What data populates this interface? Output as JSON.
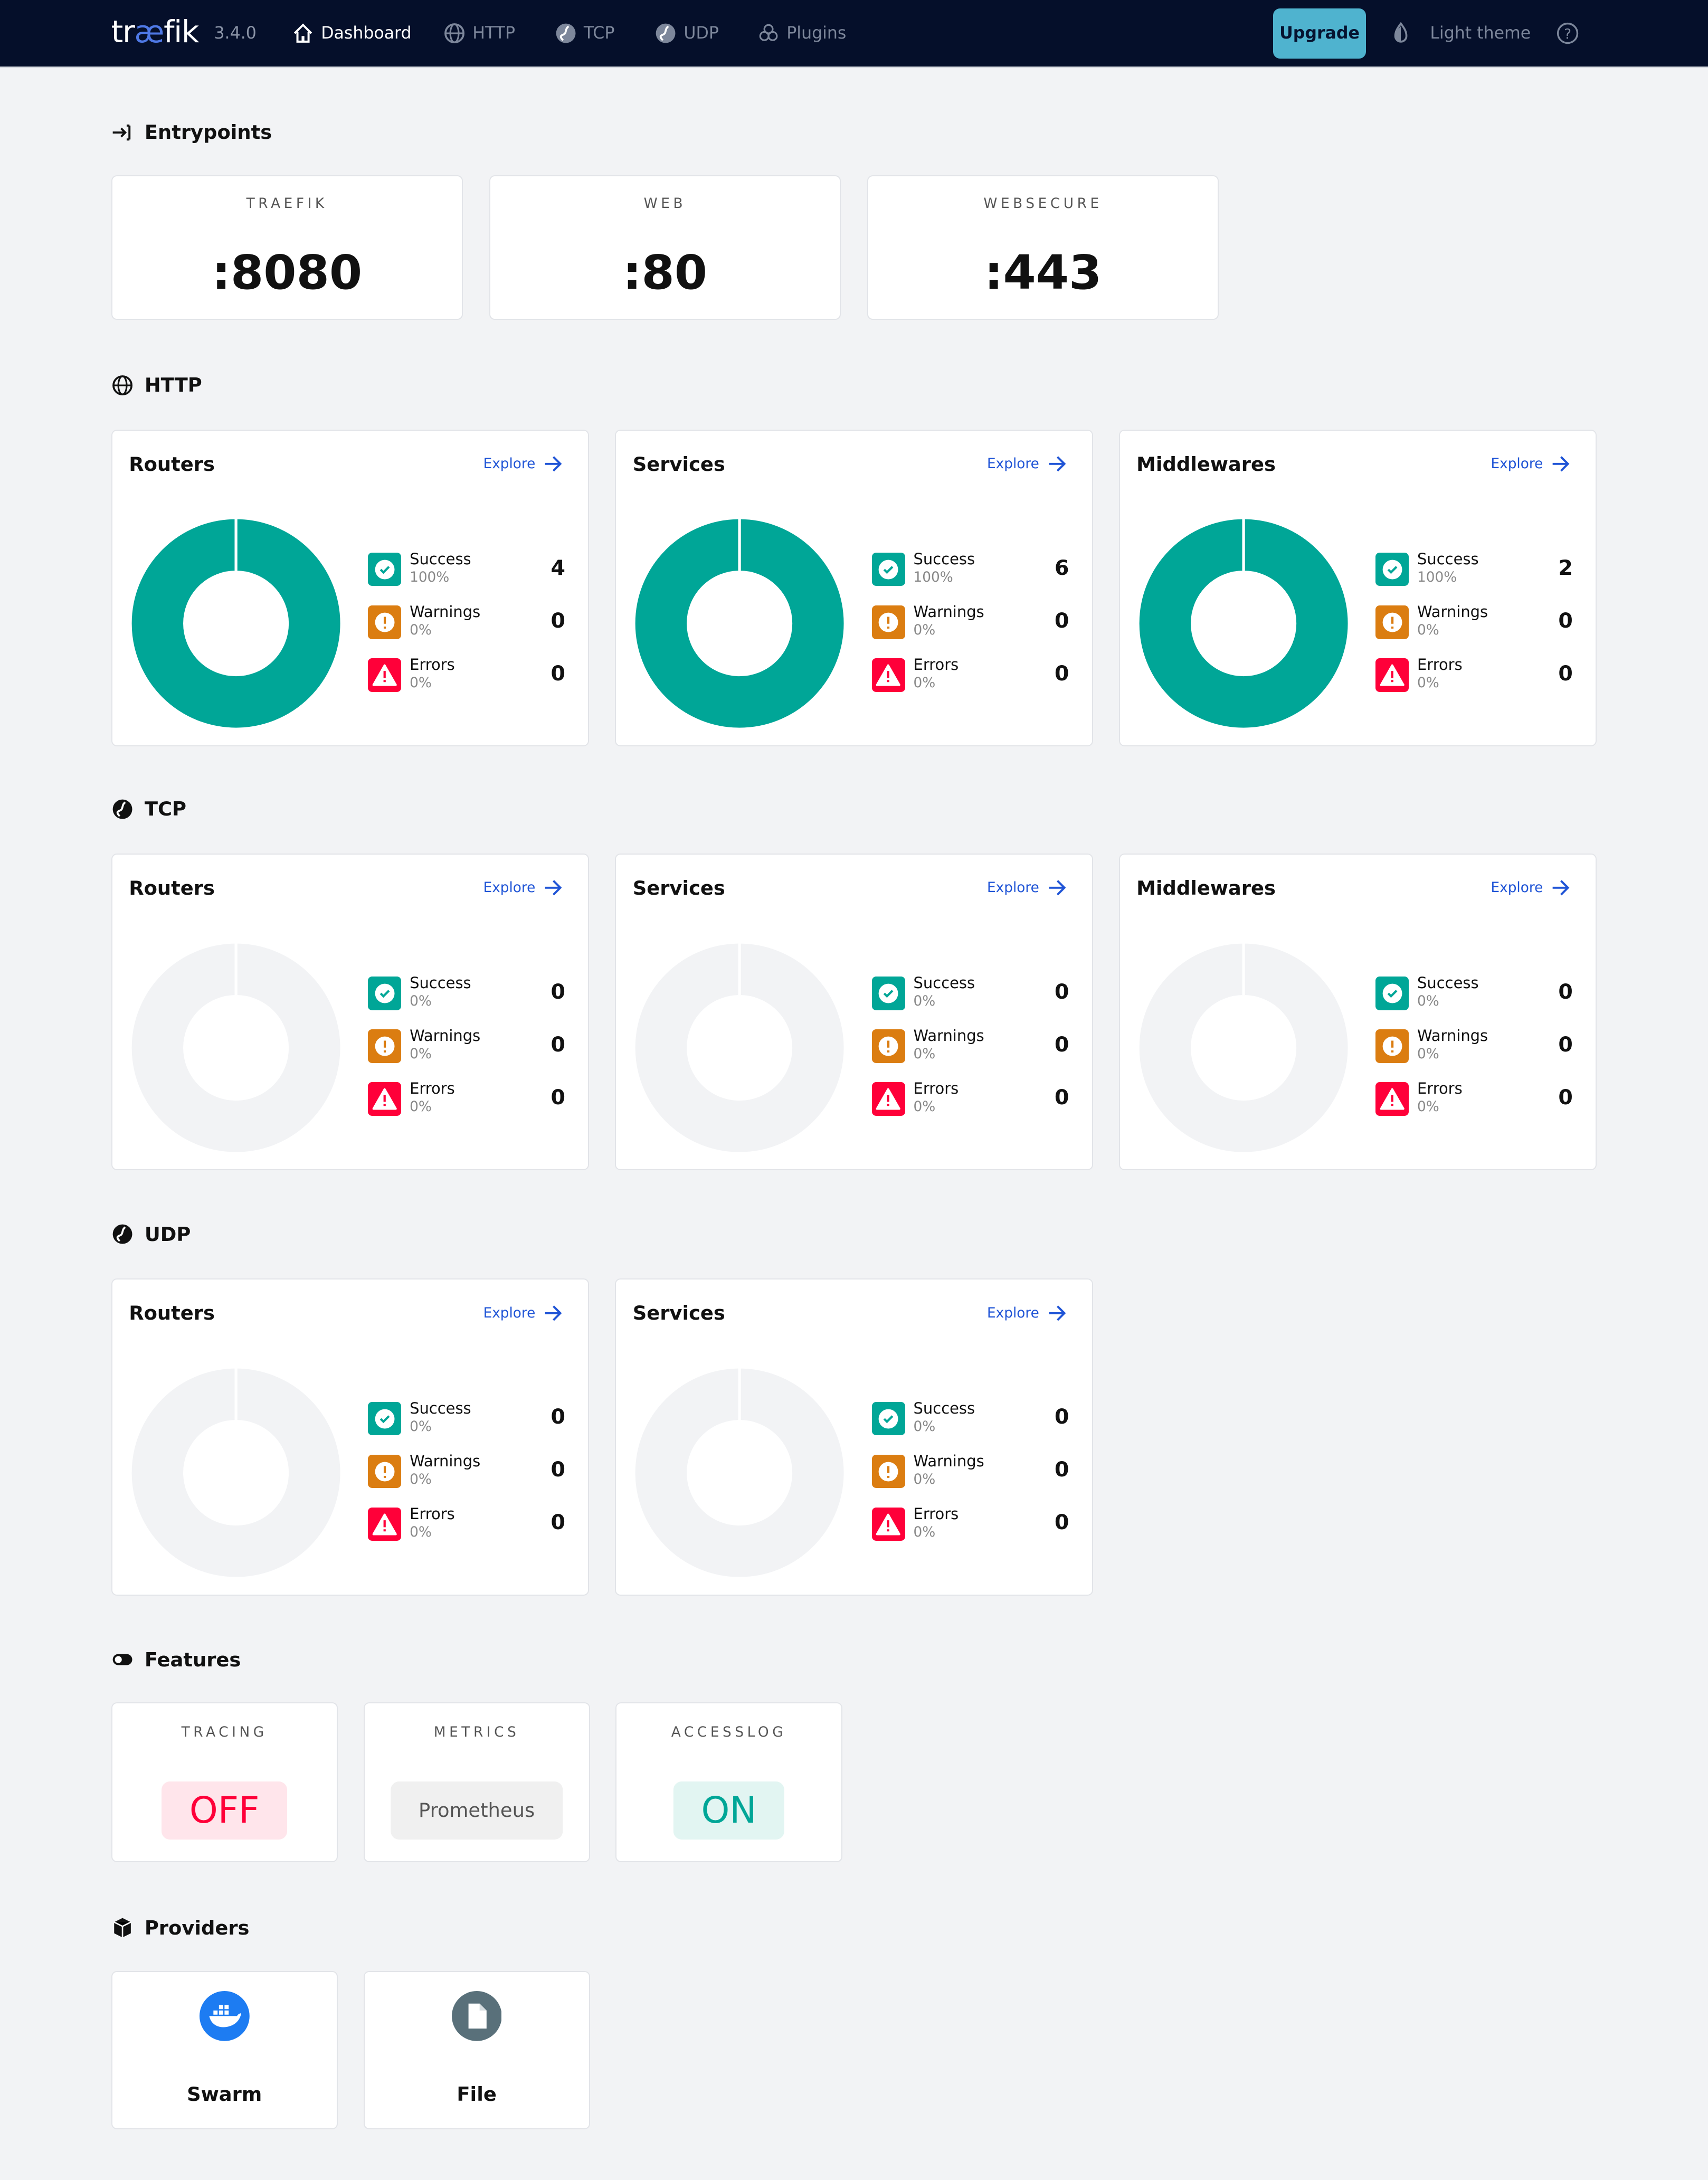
{
  "header": {
    "logo": "træfik",
    "version": "3.4.0",
    "nav": [
      {
        "label": "Dashboard",
        "icon": "home-icon",
        "active": true
      },
      {
        "label": "HTTP",
        "icon": "globe-icon"
      },
      {
        "label": "TCP",
        "icon": "tcp-icon"
      },
      {
        "label": "UDP",
        "icon": "udp-icon"
      },
      {
        "label": "Plugins",
        "icon": "plugins-icon"
      }
    ],
    "upgrade": "Upgrade",
    "theme": "Light theme"
  },
  "colors": {
    "success": "#00a697",
    "warning": "#db7d11",
    "error": "#ff0039",
    "empty": "#f2f3f5",
    "explore": "#1f54d6"
  },
  "entrypoints": {
    "title": "Entrypoints",
    "items": [
      {
        "name": "TRAEFIK",
        "port": ":8080"
      },
      {
        "name": "WEB",
        "port": ":80"
      },
      {
        "name": "WEBSECURE",
        "port": ":443"
      }
    ]
  },
  "explore": "Explore",
  "sections": [
    {
      "title": "HTTP",
      "icon": "globe-icon",
      "cards": [
        {
          "title": "Routers",
          "success": 4,
          "sp": "100%",
          "warnings": 0,
          "wp": "0%",
          "errors": 0,
          "ep": "0%"
        },
        {
          "title": "Services",
          "success": 6,
          "sp": "100%",
          "warnings": 0,
          "wp": "0%",
          "errors": 0,
          "ep": "0%"
        },
        {
          "title": "Middlewares",
          "success": 2,
          "sp": "100%",
          "warnings": 0,
          "wp": "0%",
          "errors": 0,
          "ep": "0%"
        }
      ]
    },
    {
      "title": "TCP",
      "icon": "tcp-icon",
      "cards": [
        {
          "title": "Routers",
          "success": 0,
          "sp": "0%",
          "warnings": 0,
          "wp": "0%",
          "errors": 0,
          "ep": "0%"
        },
        {
          "title": "Services",
          "success": 0,
          "sp": "0%",
          "warnings": 0,
          "wp": "0%",
          "errors": 0,
          "ep": "0%"
        },
        {
          "title": "Middlewares",
          "success": 0,
          "sp": "0%",
          "warnings": 0,
          "wp": "0%",
          "errors": 0,
          "ep": "0%"
        }
      ]
    },
    {
      "title": "UDP",
      "icon": "udp-icon",
      "cards": [
        {
          "title": "Routers",
          "success": 0,
          "sp": "0%",
          "warnings": 0,
          "wp": "0%",
          "errors": 0,
          "ep": "0%"
        },
        {
          "title": "Services",
          "success": 0,
          "sp": "0%",
          "warnings": 0,
          "wp": "0%",
          "errors": 0,
          "ep": "0%"
        }
      ]
    }
  ],
  "legend": {
    "success": "Success",
    "warnings": "Warnings",
    "errors": "Errors"
  },
  "features": {
    "title": "Features",
    "items": [
      {
        "name": "TRACING",
        "value": "OFF",
        "bg": "#ffe5eb",
        "fg": "#ff0039"
      },
      {
        "name": "METRICS",
        "value": "Prometheus",
        "bg": "#f0f0f0",
        "fg": "#555"
      },
      {
        "name": "ACCESSLOG",
        "value": "ON",
        "bg": "#e2f5f2",
        "fg": "#00a697"
      }
    ]
  },
  "providers": {
    "title": "Providers",
    "items": [
      {
        "name": "Swarm",
        "icon": "docker-icon"
      },
      {
        "name": "File",
        "icon": "file-icon"
      }
    ]
  }
}
